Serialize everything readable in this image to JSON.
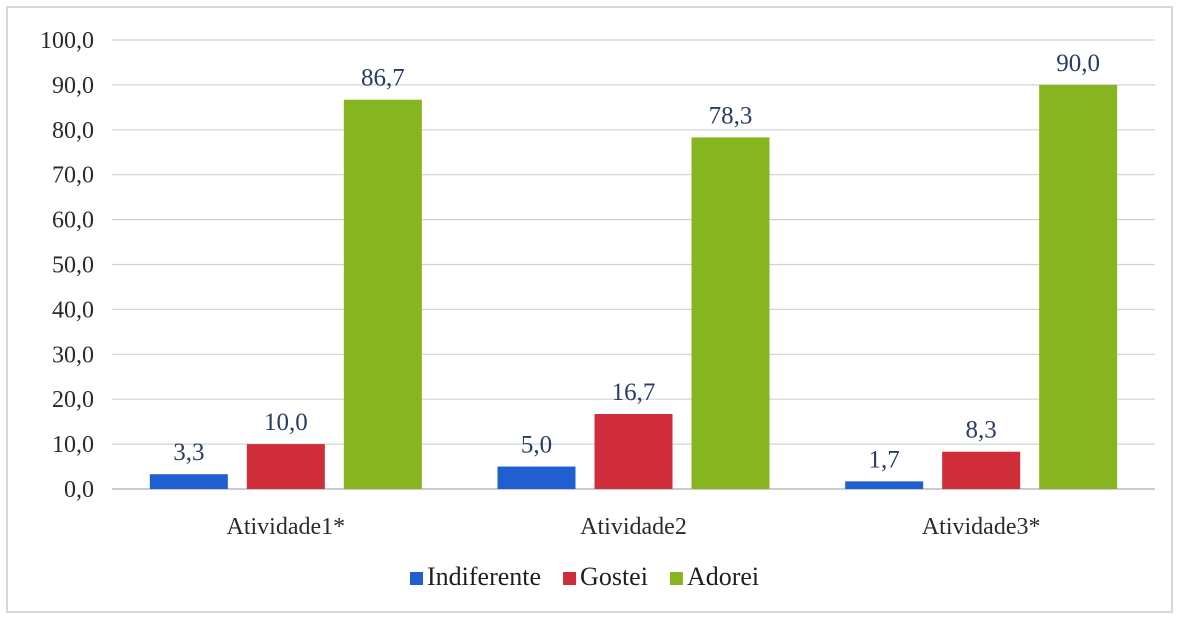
{
  "chart_data": {
    "type": "bar",
    "title": "",
    "xlabel": "",
    "ylabel": "",
    "categories": [
      "Atividade1*",
      "Atividade2",
      "Atividade3*"
    ],
    "series": [
      {
        "name": "Indiferente",
        "color": "#1f5fcf",
        "values": [
          3.3,
          5.0,
          1.7
        ],
        "labels": [
          "3,3",
          "5,0",
          "1,7"
        ]
      },
      {
        "name": "Gostei",
        "color": "#d02d3a",
        "values": [
          10.0,
          16.7,
          8.3
        ],
        "labels": [
          "10,0",
          "16,7",
          "8,3"
        ]
      },
      {
        "name": "Adorei",
        "color": "#86b520",
        "values": [
          86.7,
          78.3,
          90.0
        ],
        "labels": [
          "86,7",
          "78,3",
          "90,0"
        ]
      }
    ],
    "ylim": [
      0,
      100
    ],
    "yticks": [
      0,
      10,
      20,
      30,
      40,
      50,
      60,
      70,
      80,
      90,
      100
    ],
    "ytick_labels": [
      "0,0",
      "10,0",
      "20,0",
      "30,0",
      "40,0",
      "50,0",
      "60,0",
      "70,0",
      "80,0",
      "90,0",
      "100,0"
    ],
    "grid": true,
    "legend_position": "bottom"
  }
}
